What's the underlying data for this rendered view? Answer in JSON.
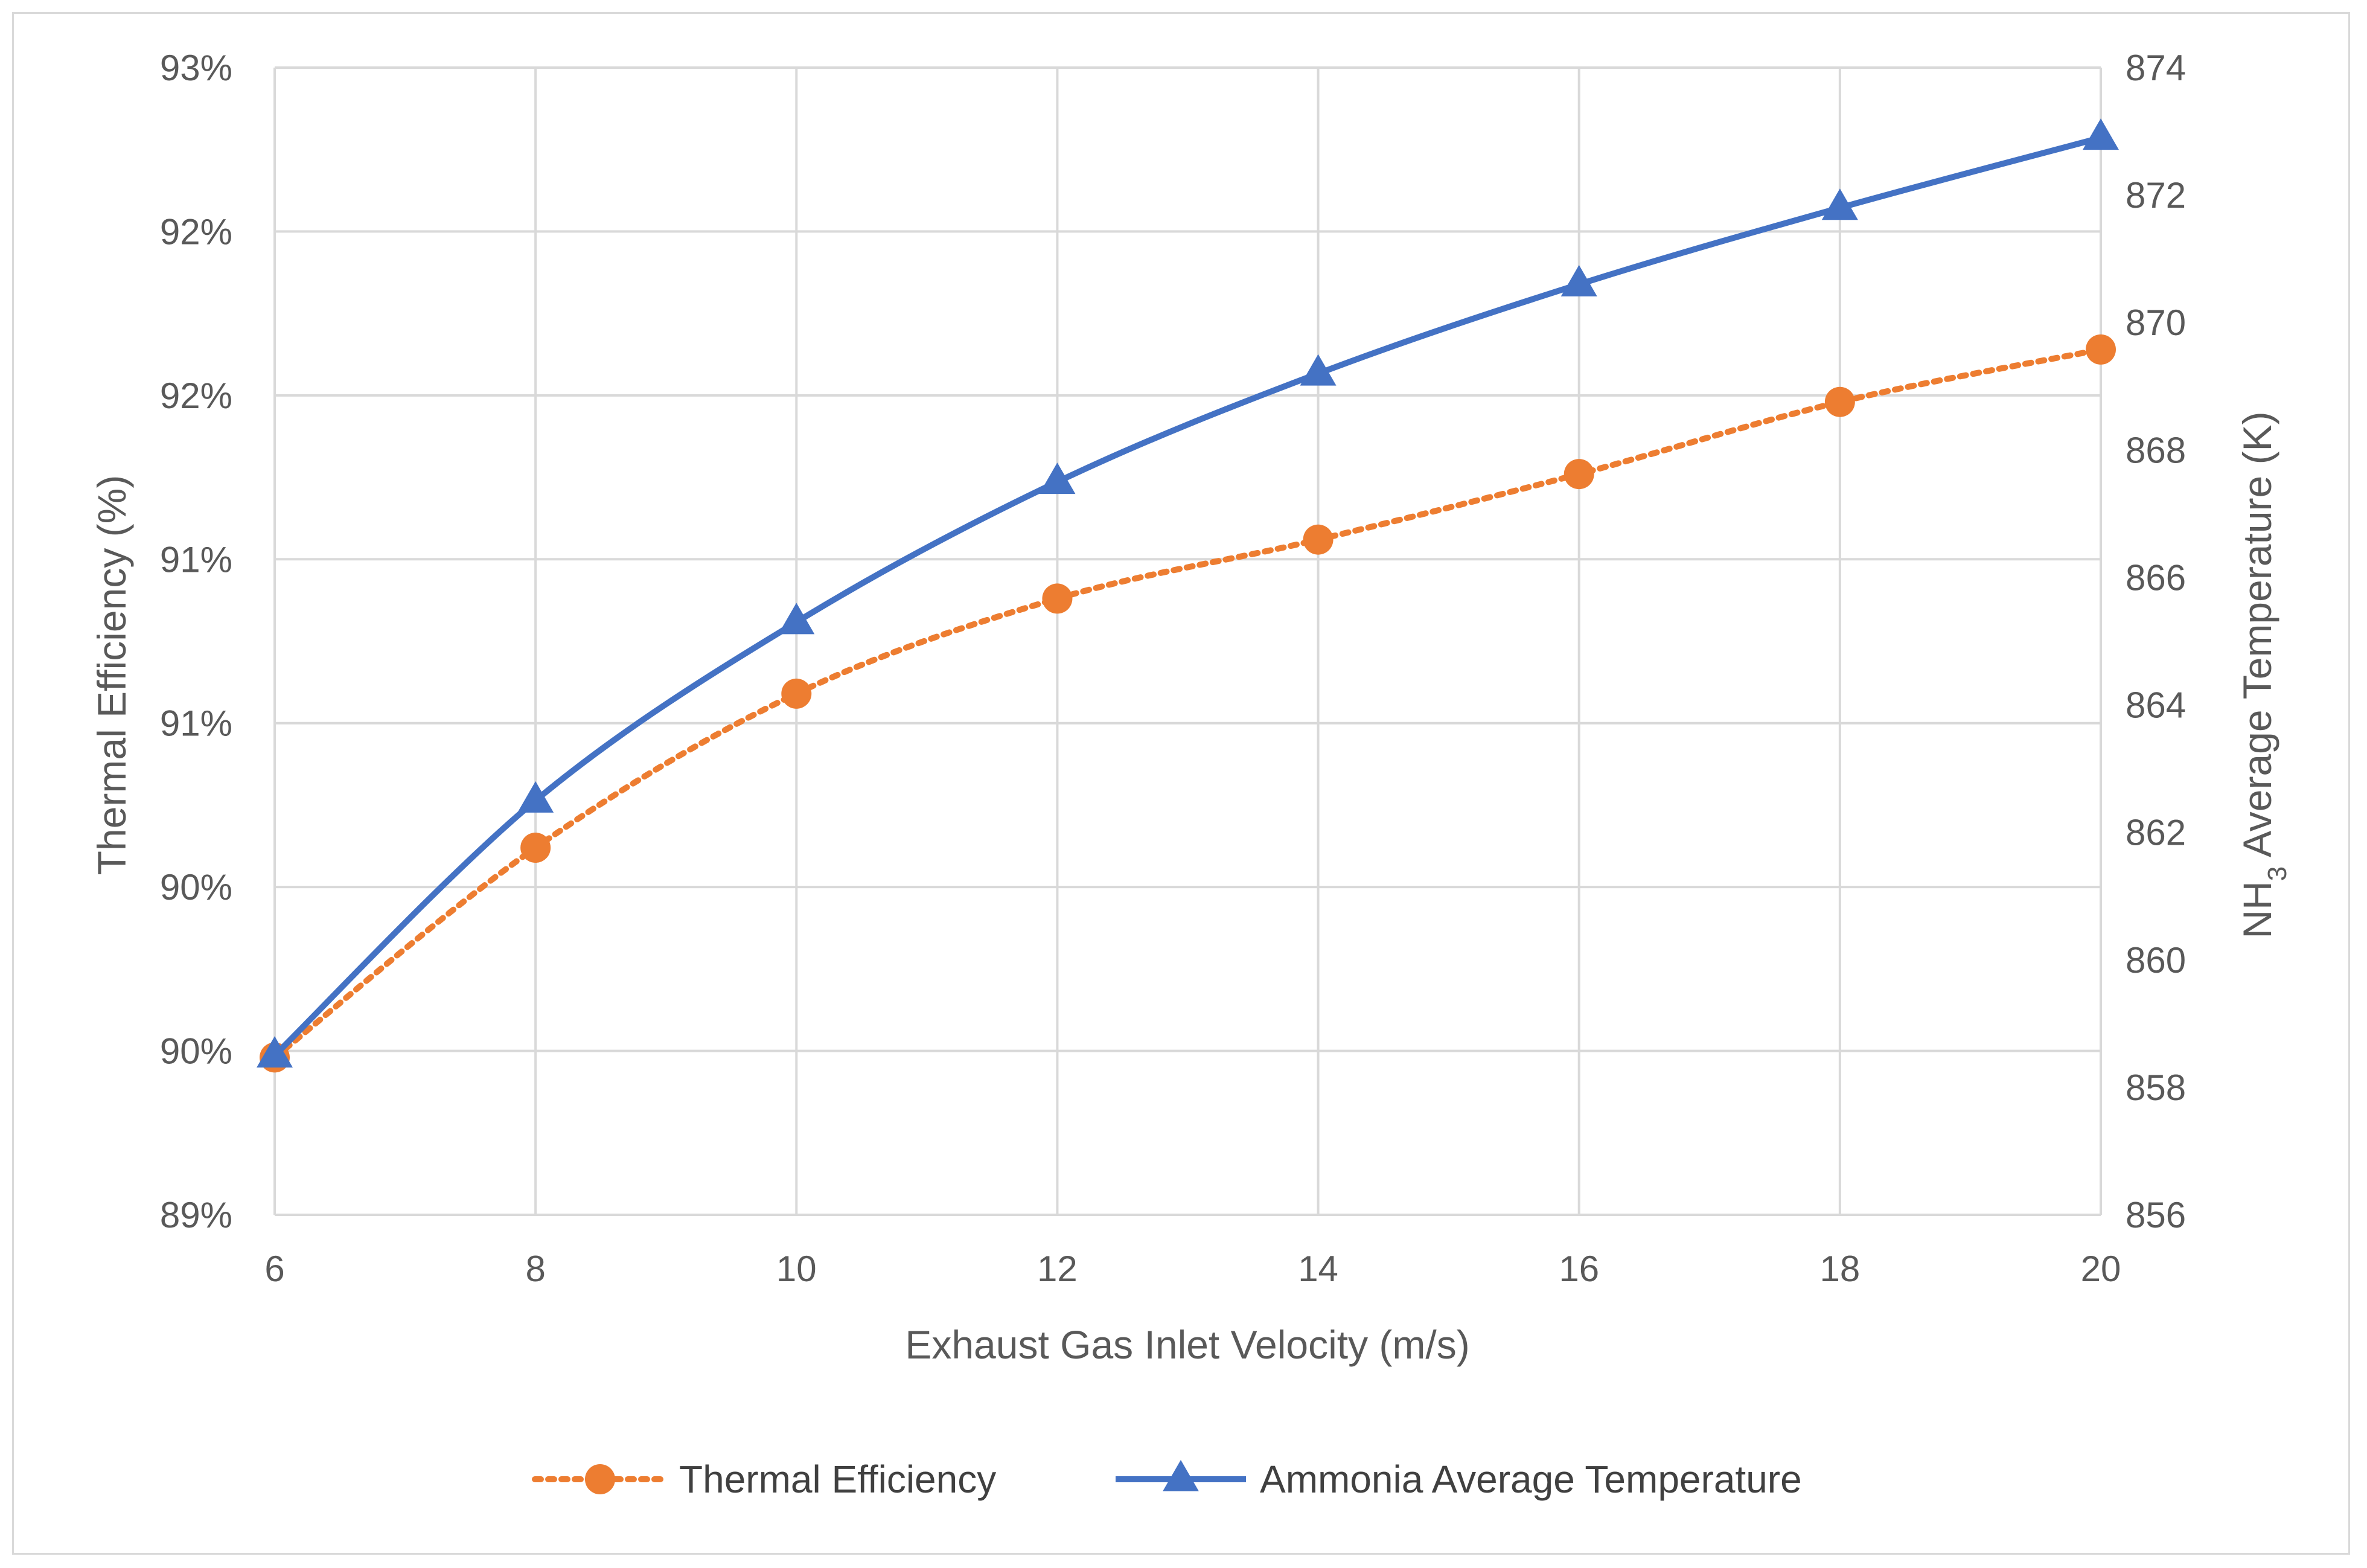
{
  "chart_data": {
    "type": "line",
    "x": [
      6,
      8,
      10,
      12,
      14,
      16,
      18,
      20
    ],
    "xlabel": "Exhaust Gas Inlet Velocity (m/s)",
    "xlim": [
      6,
      20
    ],
    "x_tick_labels": [
      "6",
      "8",
      "10",
      "12",
      "14",
      "16",
      "18",
      "20"
    ],
    "ylabel_left": "Thermal Efficiency (%)",
    "ylim_left": [
      0.89,
      0.925
    ],
    "y_left_ticks": [
      0.89,
      0.895,
      0.9,
      0.905,
      0.91,
      0.915,
      0.92,
      0.925
    ],
    "y_left_tick_labels": [
      "89%",
      "90%",
      "90%",
      "91%",
      "91%",
      "92%",
      "92%",
      "93%"
    ],
    "ylabel_right_parts": [
      "NH",
      "3",
      " Average Temperature (K)"
    ],
    "ylim_right": [
      856,
      874
    ],
    "y_right_ticks": [
      856,
      858,
      860,
      862,
      864,
      866,
      868,
      870,
      872,
      874
    ],
    "y_right_tick_labels": [
      "856",
      "858",
      "860",
      "862",
      "864",
      "866",
      "868",
      "870",
      "872",
      "874"
    ],
    "grid": true,
    "legend_position": "bottom-center",
    "series": [
      {
        "name": "Thermal Efficiency",
        "axis": "left",
        "values": [
          0.8948,
          0.9012,
          0.9059,
          0.9088,
          0.9106,
          0.9126,
          0.9148,
          0.9164
        ],
        "color": "#ED7D31",
        "line_style": "dotted",
        "marker": "circle"
      },
      {
        "name": "Ammonia Average Temperature",
        "axis": "right",
        "values": [
          858.5,
          862.5,
          865.3,
          867.5,
          869.2,
          870.6,
          871.8,
          872.9
        ],
        "color": "#4472C4",
        "line_style": "solid",
        "marker": "triangle"
      }
    ]
  }
}
